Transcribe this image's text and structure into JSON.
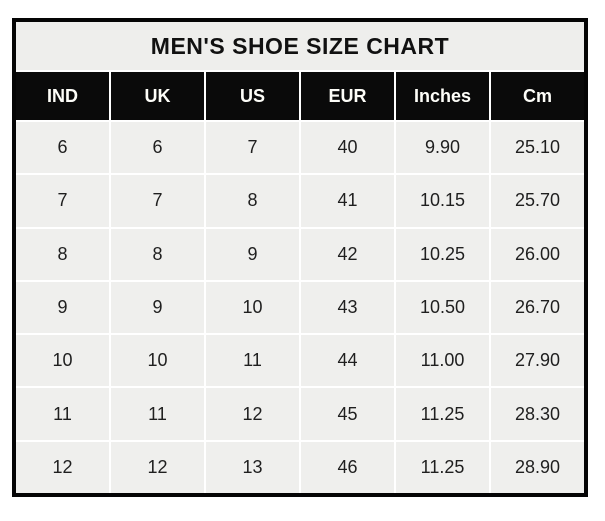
{
  "title": "MEN'S SHOE SIZE CHART",
  "colors": {
    "page_bg": "#ffffff",
    "outer_border": "#050505",
    "title_bg": "#eeeeec",
    "header_bg": "#0a0a0a",
    "header_text": "#fdfdf8",
    "cell_bg": "#efefed",
    "cell_text": "#1f1f1f",
    "grid_lines": "#ffffff"
  },
  "chart_data": {
    "type": "table",
    "title": "MEN'S SHOE SIZE CHART",
    "columns": [
      "IND",
      "UK",
      "US",
      "EUR",
      "Inches",
      "Cm"
    ],
    "rows": [
      [
        "6",
        "6",
        "7",
        "40",
        "9.90",
        "25.10"
      ],
      [
        "7",
        "7",
        "8",
        "41",
        "10.15",
        "25.70"
      ],
      [
        "8",
        "8",
        "9",
        "42",
        "10.25",
        "26.00"
      ],
      [
        "9",
        "9",
        "10",
        "43",
        "10.50",
        "26.70"
      ],
      [
        "10",
        "10",
        "11",
        "44",
        "11.00",
        "27.90"
      ],
      [
        "11",
        "11",
        "12",
        "45",
        "11.25",
        "28.30"
      ],
      [
        "12",
        "12",
        "13",
        "46",
        "11.25",
        "28.90"
      ]
    ]
  }
}
